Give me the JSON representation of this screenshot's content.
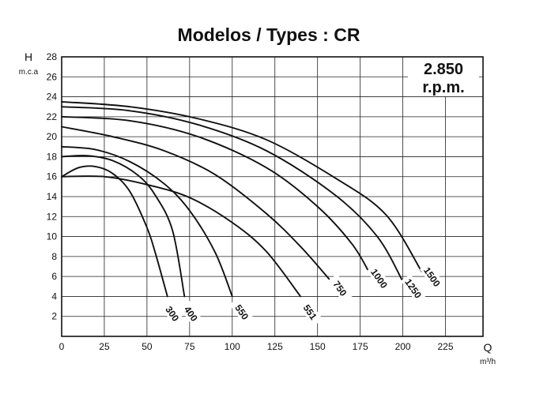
{
  "chart_data": {
    "type": "line",
    "title": "Modelos / Types : CR",
    "ylabel": "H",
    "ylabel_unit": "m.c.a",
    "xlabel": "Q",
    "xlabel_unit": "m³/h",
    "speed_line1": "2.850",
    "speed_line2": "r.p.m.",
    "xlim": [
      0,
      247
    ],
    "ylim": [
      0,
      28
    ],
    "x_ticks": [
      0,
      25,
      50,
      75,
      100,
      125,
      150,
      175,
      200,
      225
    ],
    "y_ticks": [
      2,
      4,
      6,
      8,
      10,
      12,
      14,
      16,
      18,
      20,
      22,
      24,
      26,
      28
    ],
    "grid": true,
    "series": [
      {
        "name": "300",
        "x": [
          0,
          10,
          20,
          30,
          40,
          50,
          55,
          62
        ],
        "y": [
          16,
          16.9,
          17.0,
          16.3,
          14.5,
          10.9,
          8.3,
          4.0
        ]
      },
      {
        "name": "400",
        "x": [
          0,
          15,
          30,
          45,
          55,
          65,
          72
        ],
        "y": [
          18,
          18.1,
          17.6,
          16.1,
          14.1,
          10.6,
          4.0
        ]
      },
      {
        "name": "550",
        "x": [
          0,
          20,
          40,
          60,
          75,
          90,
          100
        ],
        "y": [
          19,
          18.7,
          17.5,
          15.3,
          12.6,
          8.4,
          4.0
        ]
      },
      {
        "name": "551",
        "x": [
          0,
          25,
          50,
          75,
          100,
          120,
          140
        ],
        "y": [
          16,
          16,
          15.2,
          13.9,
          11.4,
          8.5,
          4.0
        ]
      },
      {
        "name": "750",
        "x": [
          0,
          30,
          60,
          90,
          120,
          140,
          158
        ],
        "y": [
          21,
          20,
          18.6,
          16.2,
          12.3,
          9.0,
          5.5
        ]
      },
      {
        "name": "1000",
        "x": [
          0,
          40,
          80,
          120,
          150,
          170,
          180
        ],
        "y": [
          22,
          21.6,
          20.0,
          16.9,
          13.0,
          9.3,
          6.5
        ]
      },
      {
        "name": "1250",
        "x": [
          0,
          40,
          80,
          120,
          160,
          185,
          200
        ],
        "y": [
          23,
          22.6,
          21.2,
          18.6,
          14.2,
          10.0,
          5.5
        ]
      },
      {
        "name": "1500",
        "x": [
          0,
          40,
          80,
          120,
          160,
          190,
          211
        ],
        "y": [
          23.5,
          23.0,
          21.8,
          19.7,
          15.9,
          12.2,
          6.5
        ]
      }
    ]
  }
}
